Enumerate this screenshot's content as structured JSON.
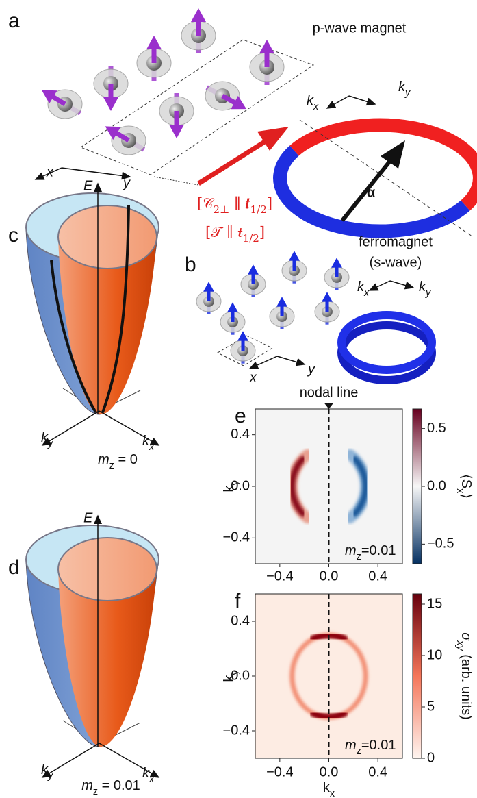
{
  "panel_a": {
    "label": "a",
    "title": "p-wave magnet",
    "k_x": {
      "parts": [
        {
          "text": "k",
          "italic": true
        },
        {
          "text": "x",
          "italic": true,
          "sub": true
        }
      ]
    },
    "k_y": {
      "parts": [
        {
          "text": "k",
          "italic": true
        },
        {
          "text": "y",
          "italic": true,
          "sub": true
        }
      ]
    },
    "x": "x",
    "y": "y",
    "alpha": "α",
    "symmetry": [
      {
        "parts": [
          {
            "text": "[𝒞"
          },
          {
            "text": "2⊥",
            "sub": true
          },
          {
            "text": " ∥ 𝒕"
          },
          {
            "text": "1/2",
            "sub": true
          },
          {
            "text": "]"
          }
        ]
      },
      {
        "parts": [
          {
            "text": "[𝒯 ∥ 𝒕"
          },
          {
            "text": "1/2",
            "sub": true
          },
          {
            "text": "]"
          }
        ]
      }
    ]
  },
  "panel_b": {
    "label": "b",
    "title": "ferromagnet",
    "subtitle": "(s-wave)",
    "k_x": {
      "parts": [
        {
          "text": "k",
          "italic": true
        },
        {
          "text": "x",
          "italic": true,
          "sub": true
        }
      ]
    },
    "k_y": {
      "parts": [
        {
          "text": "k",
          "italic": true
        },
        {
          "text": "y",
          "italic": true,
          "sub": true
        }
      ]
    },
    "x": "x",
    "y": "y"
  },
  "panel_c": {
    "label": "c",
    "E": "E",
    "k_x": {
      "parts": [
        {
          "text": "k",
          "italic": true
        },
        {
          "text": "x",
          "italic": true,
          "sub": true
        }
      ]
    },
    "k_y": {
      "parts": [
        {
          "text": "k",
          "italic": true
        },
        {
          "text": "y",
          "italic": true,
          "sub": true
        }
      ]
    },
    "m_z": {
      "parts": [
        {
          "text": "m",
          "italic": true
        },
        {
          "text": "z",
          "sub": true
        },
        {
          "text": " = 0"
        }
      ]
    }
  },
  "panel_d": {
    "label": "d",
    "E": "E",
    "k_x": {
      "parts": [
        {
          "text": "k",
          "italic": true
        },
        {
          "text": "x",
          "italic": true,
          "sub": true
        }
      ]
    },
    "k_y": {
      "parts": [
        {
          "text": "k",
          "italic": true
        },
        {
          "text": "y",
          "italic": true,
          "sub": true
        }
      ]
    },
    "m_z": {
      "parts": [
        {
          "text": "m",
          "italic": true
        },
        {
          "text": "z",
          "sub": true
        },
        {
          "text": " = 0.01"
        }
      ]
    }
  },
  "chart_data": [
    {
      "type": "heatmap",
      "label": "e",
      "annotation_top": "nodal line",
      "xlim": [
        -0.6,
        0.6
      ],
      "ylim": [
        -0.6,
        0.6
      ],
      "xticks": [
        {
          "value": -0.4,
          "label": "−0.4"
        },
        {
          "value": 0,
          "label": "0.0"
        },
        0.4
      ],
      "yticks": [
        {
          "value": -0.4,
          "label": "−0.4"
        },
        {
          "value": 0,
          "label": "0.0"
        },
        0.4
      ],
      "ylabel": {
        "parts": [
          {
            "text": "k"
          },
          {
            "text": "y",
            "sub": true
          }
        ]
      },
      "background": "#f4f4f4",
      "colorbar": {
        "lim": [
          -0.67,
          0.67
        ],
        "colors": [
          "#053061",
          "#f7f7f7",
          "#67001f"
        ],
        "ticks": [
          {
            "value": -0.5,
            "label": "−0.5"
          },
          {
            "value": 0,
            "label": "0.0"
          },
          0.5
        ],
        "label": {
          "parts": [
            {
              "text": "⟨S"
            },
            {
              "text": "x",
              "sub": true
            },
            {
              "text": "⟩"
            }
          ]
        }
      },
      "annotation": {
        "parts": [
          {
            "text": "m",
            "italic": true
          },
          {
            "text": "z",
            "sub": true
          },
          {
            "text": "=0.01"
          }
        ]
      }
    },
    {
      "type": "heatmap",
      "label": "f",
      "xlim": [
        -0.6,
        0.6
      ],
      "ylim": [
        -0.6,
        0.6
      ],
      "xticks": [
        {
          "value": -0.4,
          "label": "−0.4"
        },
        {
          "value": 0,
          "label": "0.0"
        },
        0.4
      ],
      "yticks": [
        {
          "value": -0.4,
          "label": "−0.4"
        },
        {
          "value": 0,
          "label": "0.0"
        },
        0.4
      ],
      "xlabel": {
        "parts": [
          {
            "text": "k"
          },
          {
            "text": "x",
            "sub": true
          }
        ]
      },
      "ylabel": {
        "parts": [
          {
            "text": "k"
          },
          {
            "text": "y",
            "sub": true
          }
        ]
      },
      "background": "#fdece3",
      "colorbar": {
        "lim": [
          0,
          16
        ],
        "colors": [
          "#fff5f0",
          "#f4765a",
          "#67000d"
        ],
        "ticks": [
          0,
          5,
          10,
          15
        ],
        "label": {
          "parts": [
            {
              "text": "σ",
              "italic": true
            },
            {
              "text": "xy",
              "italic": true,
              "sub": true
            },
            {
              "text": " (arb. units)"
            }
          ]
        }
      },
      "annotation": {
        "parts": [
          {
            "text": "m",
            "italic": true
          },
          {
            "text": "z",
            "sub": true
          },
          {
            "text": "=0.01"
          }
        ]
      }
    }
  ]
}
